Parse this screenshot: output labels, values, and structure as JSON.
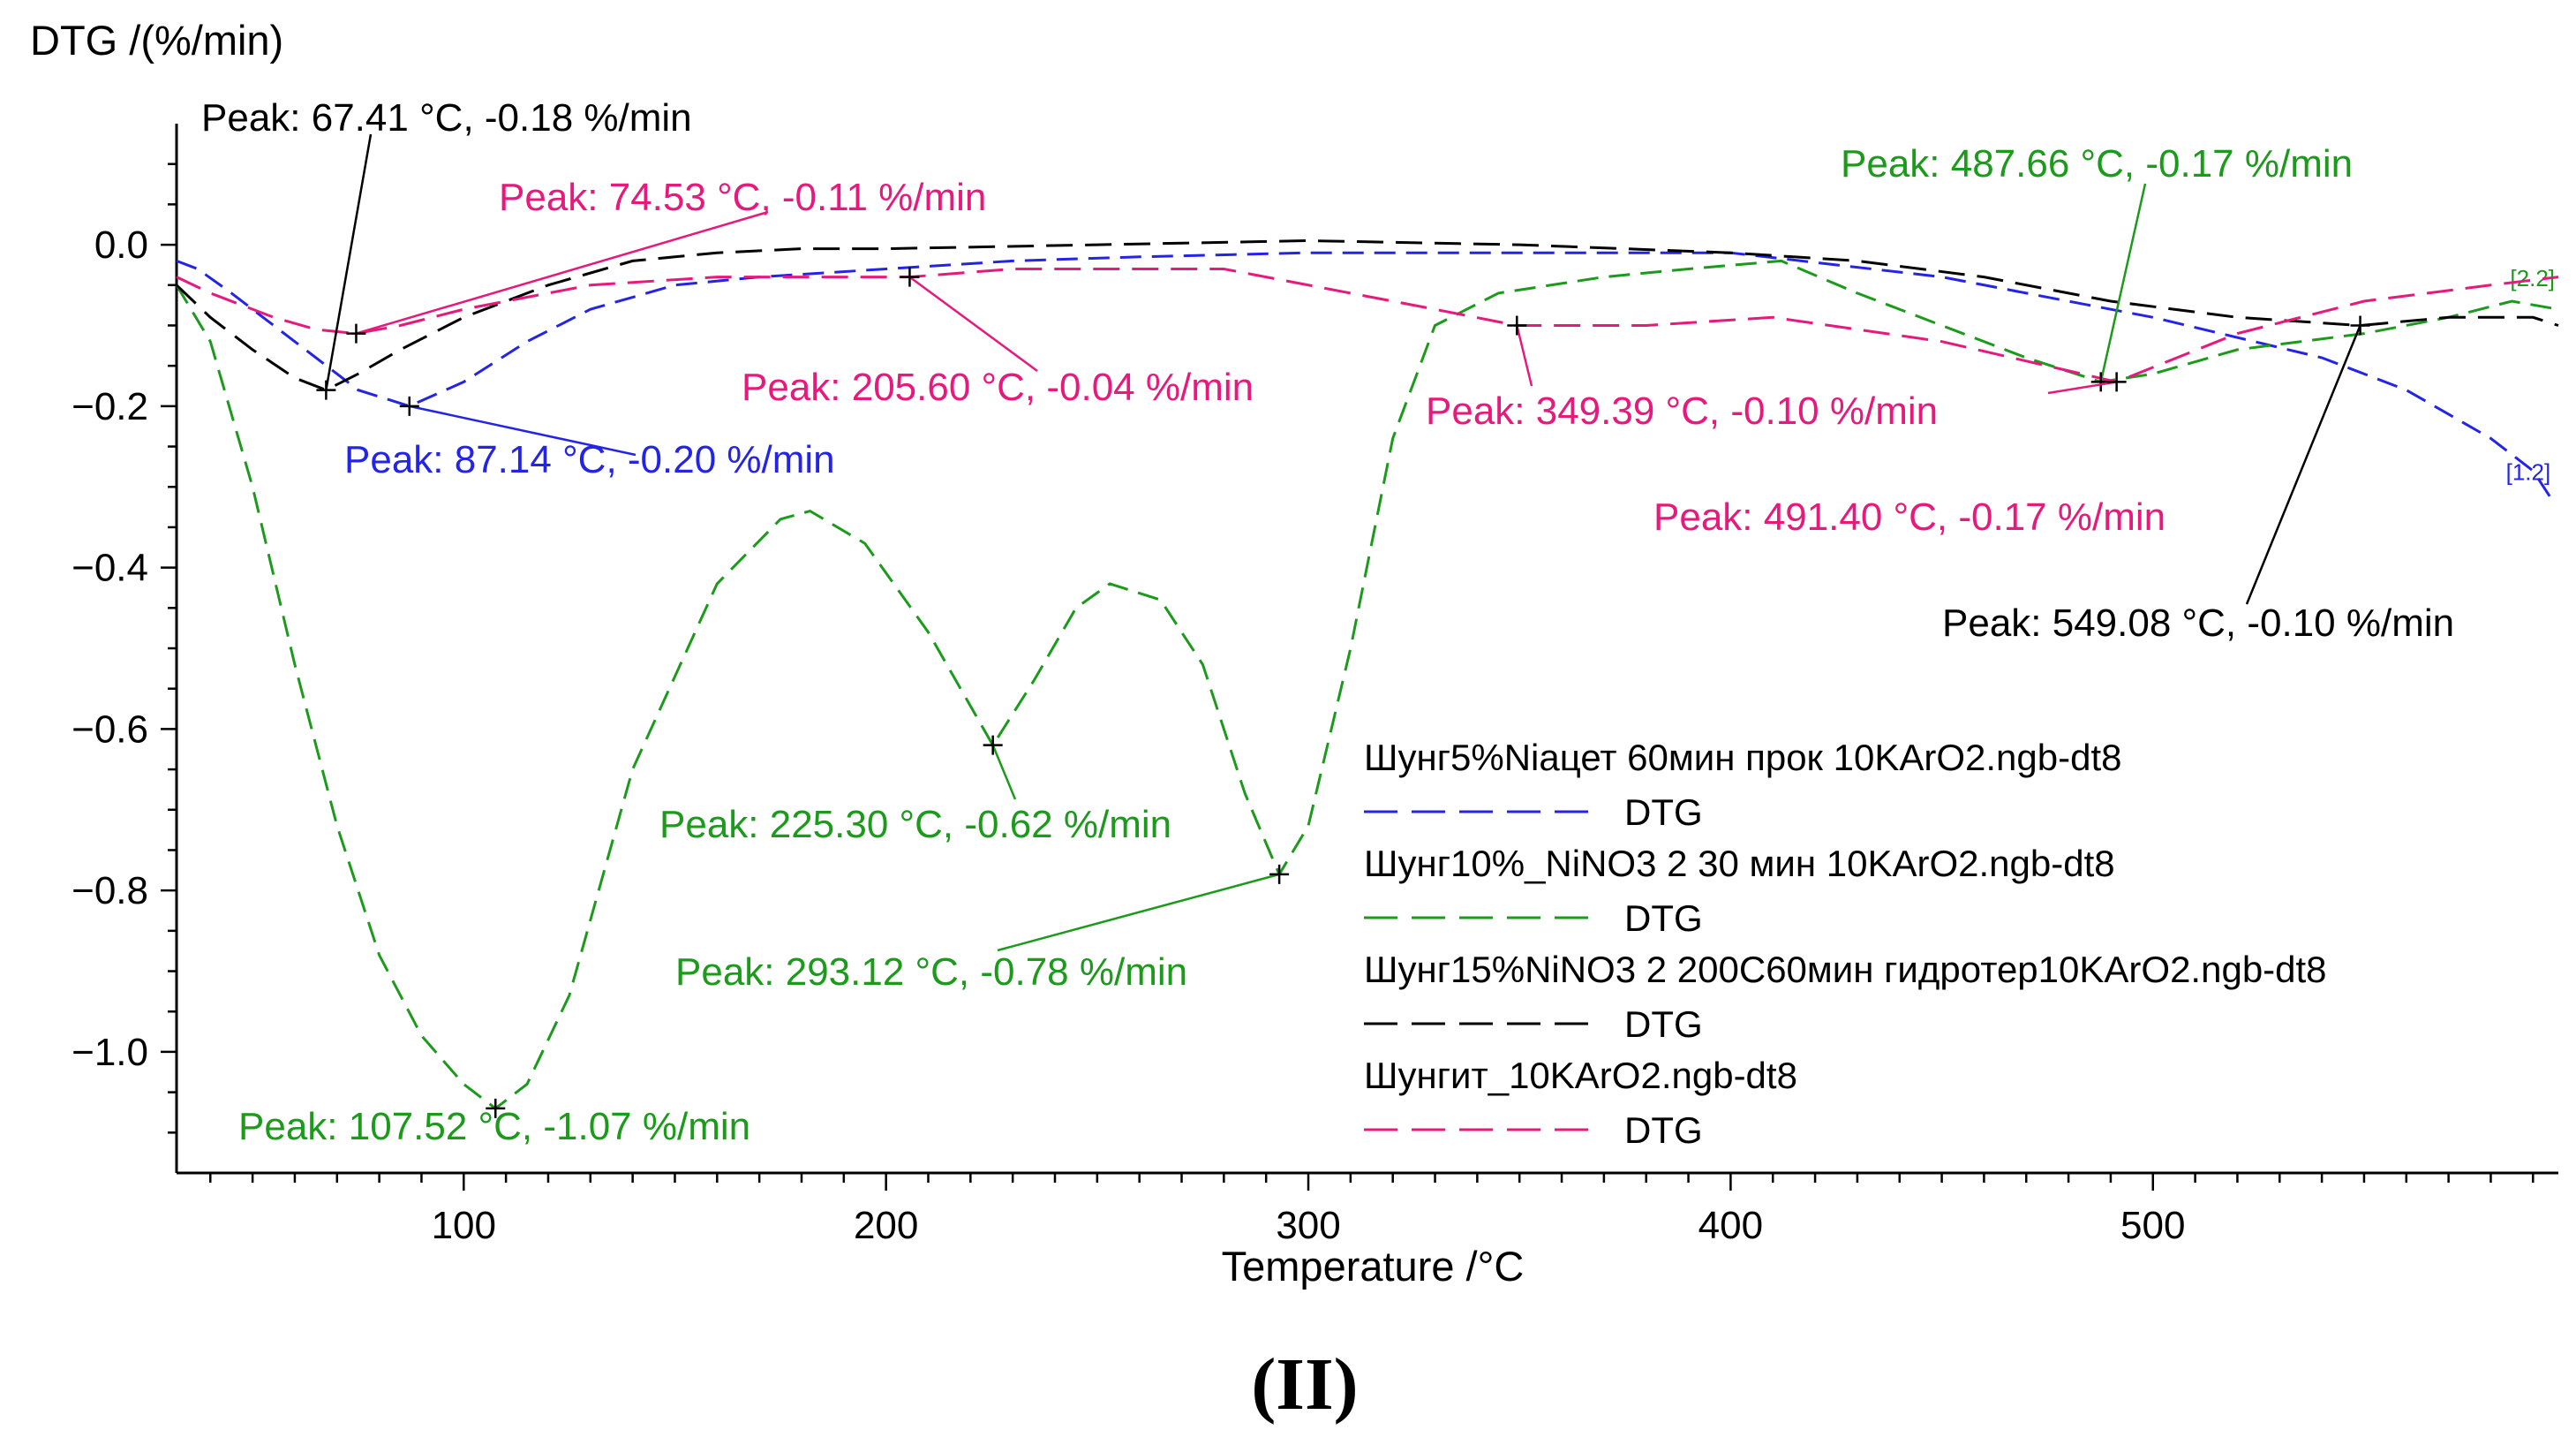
{
  "chart_data": {
    "type": "line",
    "ylabel": "DTG /(%/min)",
    "xlabel": "Temperature /°C",
    "caption": "(II)",
    "xlim": [
      32,
      596
    ],
    "ylim": [
      -1.15,
      0.15
    ],
    "x_ticks": [
      100,
      200,
      300,
      400,
      500
    ],
    "y_ticks": [
      0.0,
      -0.2,
      -0.4,
      -0.6,
      -0.8,
      -1.0
    ],
    "y_tick_labels": [
      "0.0",
      "−0.2",
      "−0.4",
      "−0.6",
      "−0.8",
      "−1.0"
    ],
    "series": [
      {
        "name": "Шунг5%Niацет 60мин прок 10KArO2.ngb-dt8",
        "legend_sub": "DTG",
        "color": "#2424e6",
        "end_marker": "[1.2]",
        "x": [
          32,
          37,
          45,
          55,
          65,
          75,
          87.14,
          100,
          115,
          130,
          150,
          170,
          200,
          230,
          260,
          300,
          350,
          400,
          450,
          500,
          540,
          560,
          580,
          590,
          595
        ],
        "y": [
          -0.02,
          -0.03,
          -0.06,
          -0.1,
          -0.14,
          -0.18,
          -0.2,
          -0.17,
          -0.12,
          -0.08,
          -0.05,
          -0.04,
          -0.03,
          -0.02,
          -0.015,
          -0.01,
          -0.01,
          -0.01,
          -0.04,
          -0.09,
          -0.14,
          -0.18,
          -0.24,
          -0.28,
          -0.32
        ]
      },
      {
        "name": "Шунг10%_NiNO3 2 30 мин 10KArO2.ngb-dt8",
        "legend_sub": "DTG",
        "color": "#1b9a1b",
        "end_marker": "[2.2]",
        "x": [
          32,
          40,
          50,
          60,
          70,
          80,
          90,
          100,
          107.52,
          115,
          125,
          140,
          160,
          175,
          182,
          195,
          210,
          225.3,
          235,
          245,
          253,
          265,
          275,
          285,
          293.12,
          300,
          310,
          320,
          330,
          345,
          370,
          390,
          412,
          430,
          450,
          470,
          487.66,
          500,
          520,
          550,
          570,
          585,
          596
        ],
        "y": [
          -0.05,
          -0.12,
          -0.3,
          -0.52,
          -0.72,
          -0.88,
          -0.98,
          -1.04,
          -1.07,
          -1.04,
          -0.93,
          -0.65,
          -0.42,
          -0.34,
          -0.33,
          -0.37,
          -0.48,
          -0.62,
          -0.54,
          -0.45,
          -0.42,
          -0.44,
          -0.52,
          -0.68,
          -0.78,
          -0.72,
          -0.5,
          -0.24,
          -0.1,
          -0.06,
          -0.04,
          -0.03,
          -0.02,
          -0.06,
          -0.1,
          -0.14,
          -0.17,
          -0.16,
          -0.13,
          -0.11,
          -0.09,
          -0.07,
          -0.08
        ]
      },
      {
        "name": "Шунг15%NiNO3 2 200С60мин гидротер10KArO2.ngb-dt8",
        "legend_sub": "DTG",
        "color": "#000000",
        "end_marker": "",
        "x": [
          32,
          40,
          50,
          60,
          67.41,
          75,
          85,
          100,
          120,
          140,
          160,
          180,
          200,
          250,
          300,
          350,
          400,
          430,
          460,
          490,
          520,
          549.08,
          570,
          590,
          596
        ],
        "y": [
          -0.05,
          -0.09,
          -0.13,
          -0.165,
          -0.18,
          -0.16,
          -0.13,
          -0.09,
          -0.05,
          -0.02,
          -0.01,
          -0.005,
          -0.005,
          0.0,
          0.005,
          0.0,
          -0.01,
          -0.02,
          -0.04,
          -0.07,
          -0.09,
          -0.1,
          -0.09,
          -0.09,
          -0.1
        ]
      },
      {
        "name": "Шунгит_10KArO2.ngb-dt8",
        "legend_sub": "DTG",
        "color": "#e6197d",
        "end_marker": "",
        "x": [
          32,
          40,
          55,
          65,
          74.53,
          85,
          100,
          130,
          160,
          190,
          205.6,
          230,
          280,
          330,
          349.39,
          380,
          410,
          450,
          491.4,
          520,
          550,
          580,
          596
        ],
        "y": [
          -0.04,
          -0.06,
          -0.09,
          -0.105,
          -0.11,
          -0.1,
          -0.08,
          -0.05,
          -0.04,
          -0.04,
          -0.04,
          -0.03,
          -0.03,
          -0.08,
          -0.1,
          -0.1,
          -0.09,
          -0.12,
          -0.17,
          -0.11,
          -0.07,
          -0.05,
          -0.04
        ]
      }
    ],
    "annotations": [
      {
        "text": "Peak: 67.41 °C, -0.18 %/min",
        "series": 2,
        "x": 67.41,
        "y": -0.18
      },
      {
        "text": "Peak: 74.53 °C, -0.11 %/min",
        "series": 3,
        "x": 74.53,
        "y": -0.11
      },
      {
        "text": "Peak: 87.14 °C, -0.20 %/min",
        "series": 0,
        "x": 87.14,
        "y": -0.2
      },
      {
        "text": "Peak: 205.60 °C, -0.04 %/min",
        "series": 3,
        "x": 205.6,
        "y": -0.04
      },
      {
        "text": "Peak: 349.39 °C, -0.10 %/min",
        "series": 3,
        "x": 349.39,
        "y": -0.1
      },
      {
        "text": "Peak: 487.66 °C, -0.17 %/min",
        "series": 1,
        "x": 487.66,
        "y": -0.17
      },
      {
        "text": "Peak: 491.40 °C, -0.17 %/min",
        "series": 3,
        "x": 491.4,
        "y": -0.17
      },
      {
        "text": "Peak: 549.08 °C, -0.10 %/min",
        "series": 2,
        "x": 549.08,
        "y": -0.1
      },
      {
        "text": "Peak: 225.30 °C, -0.62 %/min",
        "series": 1,
        "x": 225.3,
        "y": -0.62
      },
      {
        "text": "Peak: 293.12 °C, -0.78 %/min",
        "series": 1,
        "x": 293.12,
        "y": -0.78
      },
      {
        "text": "Peak: 107.52 °C, -1.07 %/min",
        "series": 1,
        "x": 107.52,
        "y": -1.07
      }
    ],
    "legend_position": "bottom-right"
  }
}
